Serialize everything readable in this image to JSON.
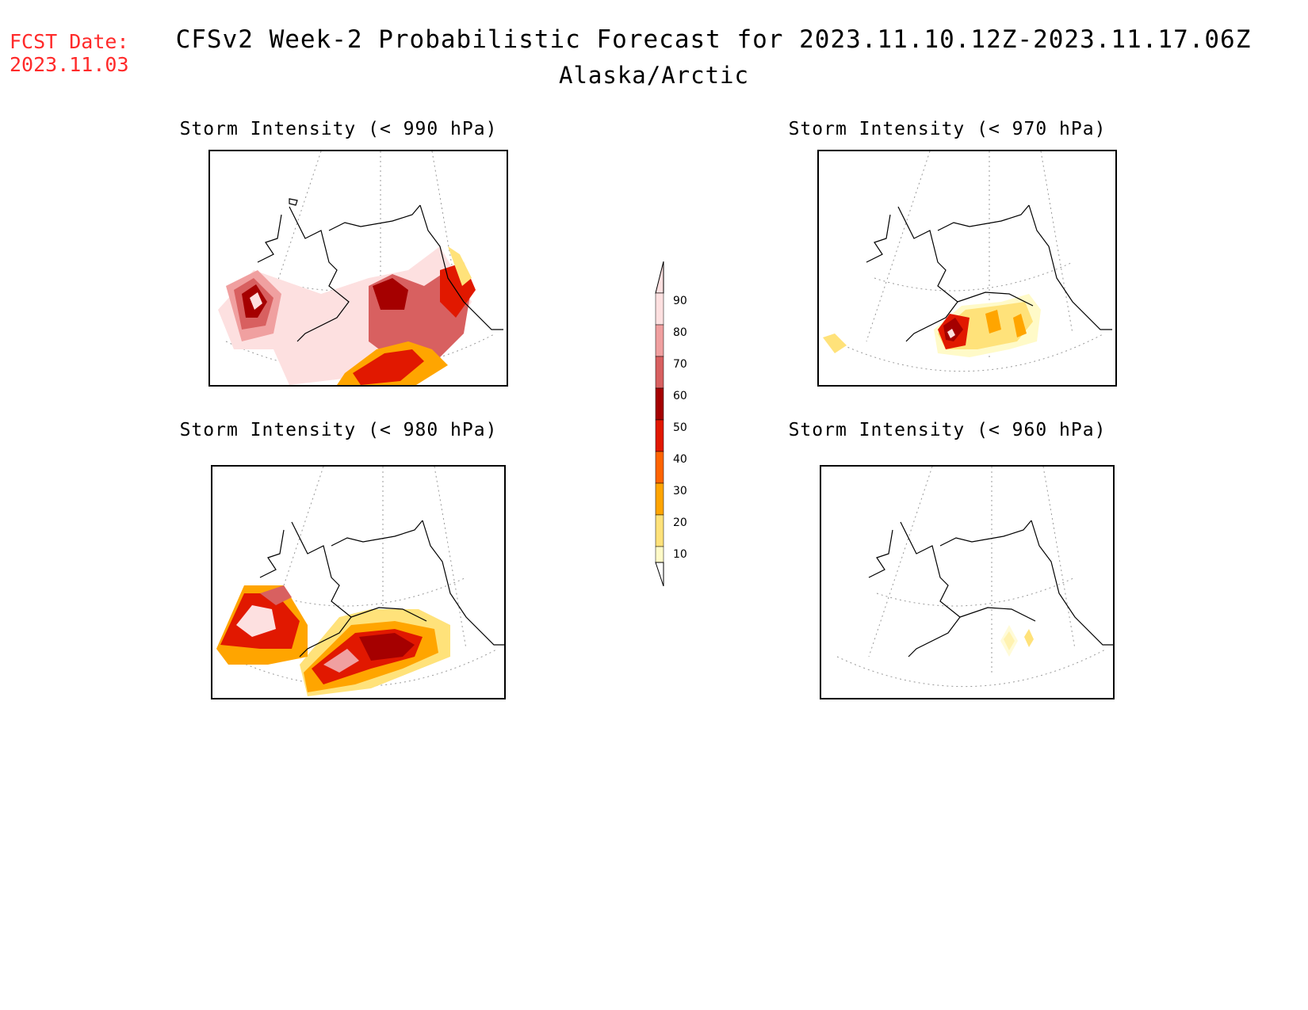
{
  "header": {
    "fcst_label": "FCST Date:",
    "fcst_date": "2023.11.03",
    "title": "CFSv2 Week-2 Probabilistic Forecast for 2023.11.10.12Z-2023.11.17.06Z",
    "subtitle": "Alaska/Arctic"
  },
  "panels": [
    {
      "title": "Storm Intensity (< 990 hPa)"
    },
    {
      "title": "Storm Intensity (< 970 hPa)"
    },
    {
      "title": "Storm Intensity (< 980 hPa)"
    },
    {
      "title": "Storm Intensity (< 960 hPa)"
    }
  ],
  "legend": {
    "labels": [
      "90",
      "80",
      "70",
      "60",
      "50",
      "40",
      "30",
      "20",
      "10"
    ],
    "colors": {
      "10": "#fffac8",
      "20": "#ffe27a",
      "30": "#ffa500",
      "40": "#ff6400",
      "50": "#e11800",
      "60": "#a50000",
      "70": "#d86060",
      "80": "#f0a0a0",
      "90": "#fde0e0"
    }
  },
  "colors": {
    "forecast_date": "#ff2a2a"
  }
}
